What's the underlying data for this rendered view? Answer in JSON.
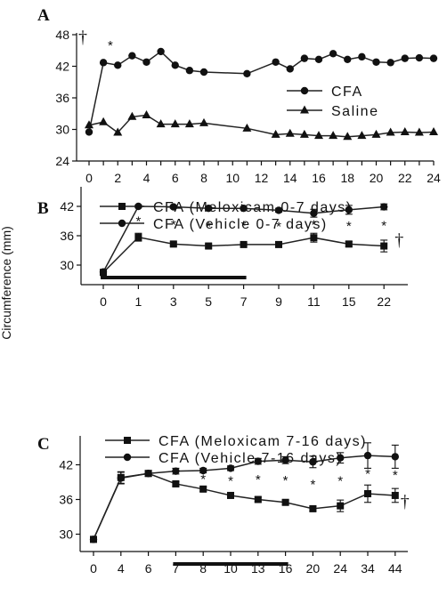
{
  "y_axis_label": "Circumference (mm)",
  "chart_data": [
    {
      "panel": "A",
      "type": "line",
      "x": [
        0,
        1,
        2,
        3,
        4,
        5,
        6,
        7,
        8,
        9,
        10,
        11,
        12,
        13,
        14,
        15,
        16,
        17,
        18,
        19,
        20,
        21,
        22,
        23,
        24
      ],
      "x_ticks": [
        "0",
        "2",
        "4",
        "6",
        "8",
        "10",
        "12",
        "14",
        "16",
        "18",
        "20",
        "22",
        "24"
      ],
      "y_ticks": [
        "24",
        "30",
        "36",
        "42",
        "48"
      ],
      "ylim": [
        24,
        48
      ],
      "series": [
        {
          "name": "CFA",
          "marker": "circle",
          "points": [
            [
              0,
              29.5
            ],
            [
              1,
              42.7
            ],
            [
              2,
              42.2
            ],
            [
              3,
              44.0
            ],
            [
              4,
              42.8
            ],
            [
              5,
              44.8
            ],
            [
              6,
              42.2
            ],
            [
              7,
              41.2
            ],
            [
              8,
              40.9
            ],
            [
              11,
              40.6
            ],
            [
              13,
              42.8
            ],
            [
              14,
              41.5
            ],
            [
              15,
              43.5
            ],
            [
              16,
              43.3
            ],
            [
              17,
              44.4
            ],
            [
              18,
              43.3
            ],
            [
              19,
              43.8
            ],
            [
              20,
              42.8
            ],
            [
              21,
              42.7
            ],
            [
              22,
              43.5
            ],
            [
              23,
              43.6
            ],
            [
              24,
              43.5
            ]
          ]
        },
        {
          "name": "Saline",
          "marker": "triangle",
          "points": [
            [
              0,
              30.8
            ],
            [
              1,
              31.4
            ],
            [
              2,
              29.4
            ],
            [
              3,
              32.4
            ],
            [
              4,
              32.7
            ],
            [
              5,
              31.0
            ],
            [
              6,
              31.0
            ],
            [
              7,
              31.0
            ],
            [
              8,
              31.2
            ],
            [
              11,
              30.2
            ],
            [
              13,
              29.0
            ],
            [
              14,
              29.2
            ],
            [
              15,
              29.0
            ],
            [
              16,
              28.8
            ],
            [
              17,
              28.8
            ],
            [
              18,
              28.6
            ],
            [
              19,
              28.8
            ],
            [
              20,
              29.0
            ],
            [
              21,
              29.4
            ],
            [
              22,
              29.5
            ],
            [
              23,
              29.4
            ],
            [
              24,
              29.5
            ]
          ]
        }
      ],
      "annotations": [
        {
          "text": "†",
          "x": 0
        },
        {
          "text": "*",
          "x": 2
        }
      ]
    },
    {
      "panel": "B",
      "type": "line",
      "categories": [
        "0",
        "1",
        "3",
        "5",
        "7",
        "9",
        "11",
        "15",
        "22"
      ],
      "y_ticks": [
        "30",
        "36",
        "42"
      ],
      "ylim": [
        26,
        46
      ],
      "series": [
        {
          "name": "CFA (Meloxicam 0-7 days)",
          "marker": "square",
          "values": [
            28.5,
            35.7,
            34.3,
            33.9,
            34.2,
            34.2,
            35.6,
            34.3,
            33.9
          ],
          "errors": [
            0.6,
            0.8,
            0.4,
            0.4,
            0.3,
            0.4,
            0.9,
            0.5,
            1.2
          ]
        },
        {
          "name": "CFA (Vehicle 0-7 days)",
          "marker": "circle",
          "values": [
            28.6,
            42.0,
            41.9,
            41.6,
            41.6,
            41.2,
            40.6,
            41.3,
            41.9
          ],
          "errors": [
            0.4,
            0.3,
            0.3,
            0.3,
            0.3,
            0.4,
            0.8,
            0.9,
            0.6
          ]
        }
      ],
      "treatment_bar": [
        0,
        7
      ],
      "stars": [
        "1",
        "3",
        "5",
        "7",
        "9",
        "11",
        "15",
        "22"
      ],
      "annotations": [
        {
          "text": "†",
          "after": "22"
        }
      ]
    },
    {
      "panel": "C",
      "type": "line",
      "categories": [
        "0",
        "4",
        "6",
        "7",
        "8",
        "10",
        "13",
        "16",
        "20",
        "24",
        "34",
        "44"
      ],
      "y_ticks": [
        "30",
        "36",
        "42"
      ],
      "ylim": [
        27,
        47
      ],
      "series": [
        {
          "name": "CFA (Meloxicam 7-16 days)",
          "marker": "square",
          "values": [
            29.1,
            39.8,
            40.5,
            38.7,
            37.8,
            36.7,
            36.0,
            35.5,
            34.4,
            34.9,
            37.0,
            36.7
          ],
          "errors": [
            0.4,
            1.0,
            0.5,
            0.4,
            0.4,
            0.4,
            0.4,
            0.4,
            0.4,
            1.0,
            1.5,
            1.2
          ]
        },
        {
          "name": "CFA (Vehicle 7-16 days)",
          "marker": "circle",
          "values": [
            29.1,
            39.7,
            40.5,
            40.9,
            41.0,
            41.4,
            42.6,
            42.8,
            42.5,
            43.2,
            43.6,
            43.4
          ],
          "errors": [
            0.4,
            1.0,
            0.5,
            0.5,
            0.4,
            0.4,
            0.5,
            0.6,
            1.0,
            0.9,
            2.2,
            2.0
          ]
        }
      ],
      "treatment_bar": [
        "7",
        "16"
      ],
      "stars": [
        "8",
        "10",
        "13",
        "16",
        "20",
        "24",
        "34",
        "44"
      ],
      "annotations": [
        {
          "text": "†",
          "after": "44"
        }
      ]
    }
  ]
}
